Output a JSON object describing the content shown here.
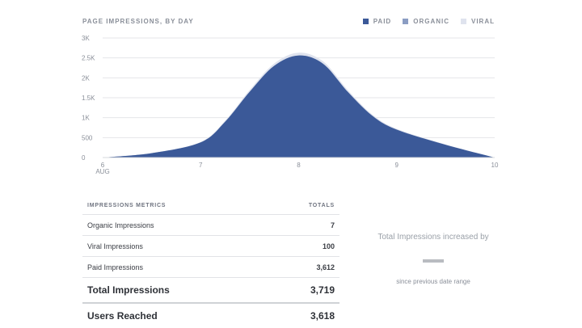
{
  "chart_data": {
    "type": "area",
    "title": "PAGE IMPRESSIONS, BY DAY",
    "x_label_suffix": "AUG",
    "x": [
      6,
      6.5,
      7,
      7.25,
      7.5,
      7.75,
      8,
      8.25,
      8.5,
      8.75,
      9,
      9.5,
      10
    ],
    "x_ticks": [
      "6",
      "7",
      "8",
      "9",
      "10"
    ],
    "y_ticks": [
      "0",
      "500",
      "1K",
      "1.5K",
      "2K",
      "2.5K",
      "3K"
    ],
    "ylim": [
      0,
      3000
    ],
    "grid": true,
    "legend_position": "top-right",
    "series": [
      {
        "name": "PAID",
        "color": "#3b5998",
        "values": [
          0,
          110,
          380,
          900,
          1650,
          2300,
          2560,
          2350,
          1650,
          1050,
          700,
          320,
          0
        ]
      },
      {
        "name": "ORGANIC",
        "color": "#8b9dc3",
        "values": [
          0,
          0,
          0,
          0,
          0,
          0,
          1,
          1,
          1,
          1,
          1,
          0,
          0
        ]
      },
      {
        "name": "VIRAL",
        "color": "#dfe3ee",
        "values": [
          0,
          3,
          10,
          25,
          45,
          60,
          70,
          60,
          45,
          30,
          20,
          8,
          0
        ]
      }
    ]
  },
  "metrics": {
    "header_label": "IMPRESSIONS METRICS",
    "header_totals": "TOTALS",
    "rows": [
      {
        "label": "Organic Impressions",
        "value": "7"
      },
      {
        "label": "Viral Impressions",
        "value": "100"
      },
      {
        "label": "Paid Impressions",
        "value": "3,612"
      }
    ],
    "total_label": "Total Impressions",
    "total_value": "3,719",
    "reach_label": "Users Reached",
    "reach_value": "3,618"
  },
  "summary": {
    "headline": "Total Impressions increased by",
    "subtext": "since previous date range"
  }
}
